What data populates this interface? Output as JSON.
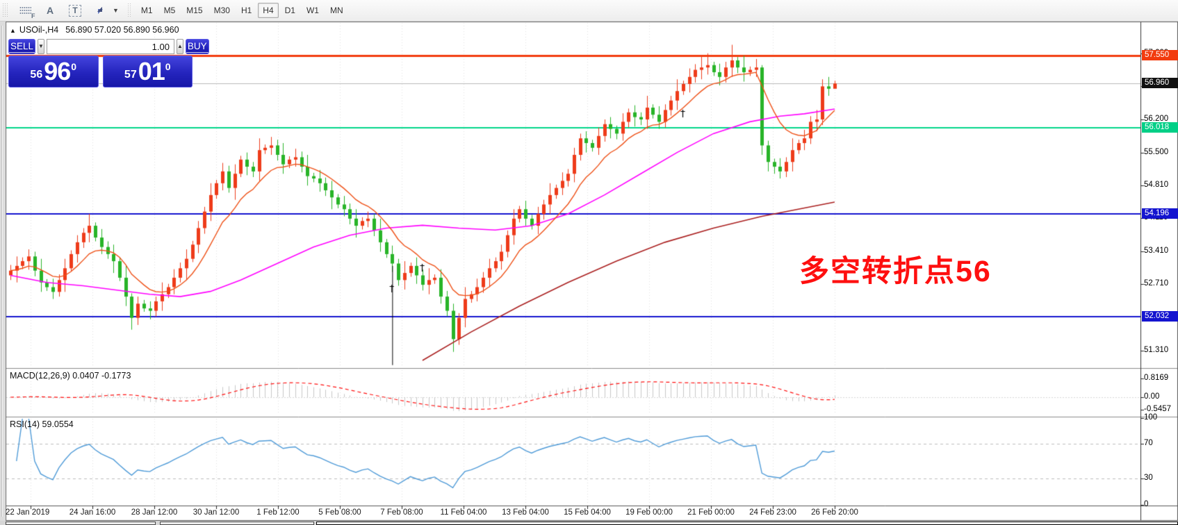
{
  "toolbar": {
    "icons": [
      {
        "name": "indicator-grid-f-icon",
        "glyph": "F"
      },
      {
        "name": "text-label-icon",
        "glyph": "A"
      },
      {
        "name": "text-box-icon",
        "glyph": "T"
      },
      {
        "name": "cycle-arrows-icon",
        "glyph": ""
      },
      {
        "name": "dropdown-caret-icon",
        "glyph": "▼"
      }
    ],
    "timeframes": [
      {
        "label": "M1",
        "active": false
      },
      {
        "label": "M5",
        "active": false
      },
      {
        "label": "M15",
        "active": false
      },
      {
        "label": "M30",
        "active": false
      },
      {
        "label": "H1",
        "active": false
      },
      {
        "label": "H4",
        "active": true
      },
      {
        "label": "D1",
        "active": false
      },
      {
        "label": "W1",
        "active": false
      },
      {
        "label": "MN",
        "active": false
      }
    ]
  },
  "chart": {
    "title_arrow": "▲",
    "symbol": "USOil-,H4",
    "ohlc": "56.890 57.020 56.890 56.960",
    "annotation": {
      "text": "多空转折点56",
      "color": "#fe0f0f"
    }
  },
  "trade_panel": {
    "sell_label": "SELL",
    "buy_label": "BUY",
    "volume": "1.00",
    "spinner_down": "▼",
    "spinner_up": "▲",
    "sell_price": {
      "small": "56",
      "big": "96",
      "sup": "0"
    },
    "buy_price": {
      "small": "57",
      "big": "01",
      "sup": "0"
    }
  },
  "price_axis": {
    "ticks": [
      {
        "label": "57.600",
        "value": 57.6
      },
      {
        "label": "56.900",
        "value": 56.9
      },
      {
        "label": "56.200",
        "value": 56.2
      },
      {
        "label": "55.500",
        "value": 55.5
      },
      {
        "label": "54.810",
        "value": 54.81
      },
      {
        "label": "54.110",
        "value": 54.11
      },
      {
        "label": "53.410",
        "value": 53.41
      },
      {
        "label": "52.710",
        "value": 52.71
      },
      {
        "label": "51.310",
        "value": 51.31
      }
    ],
    "badges": [
      {
        "label": "57.550",
        "value": 57.55,
        "color": "#f23b0e"
      },
      {
        "label": "56.960",
        "value": 56.96,
        "color": "#111111"
      },
      {
        "label": "56.018",
        "value": 56.018,
        "color": "#00cf86"
      },
      {
        "label": "54.196",
        "value": 54.196,
        "color": "#1414cf"
      },
      {
        "label": "52.032",
        "value": 52.032,
        "color": "#1414cf"
      }
    ]
  },
  "indicators": {
    "macd": {
      "label": "MACD(12,26,9) 0.0407 -0.1773",
      "axis": [
        {
          "label": "0.8169",
          "value": 0.8169
        },
        {
          "label": "0.00",
          "value": 0
        },
        {
          "label": "-0.5457",
          "value": -0.5457
        }
      ]
    },
    "rsi": {
      "label": "RSI(14) 59.0554",
      "axis": [
        {
          "label": "100",
          "value": 100
        },
        {
          "label": "70",
          "value": 70
        },
        {
          "label": "30",
          "value": 30
        },
        {
          "label": "0",
          "value": 0
        }
      ]
    }
  },
  "time_axis": [
    "22 Jan 2019",
    "24 Jan 16:00",
    "28 Jan 12:00",
    "30 Jan 12:00",
    "1 Feb 12:00",
    "5 Feb 08:00",
    "7 Feb 08:00",
    "11 Feb 04:00",
    "13 Feb 04:00",
    "15 Feb 04:00",
    "19 Feb 00:00",
    "21 Feb 00:00",
    "24 Feb 23:00",
    "26 Feb 20:00"
  ],
  "chart_data": {
    "type": "candlestick",
    "symbol": "USOil-",
    "timeframe": "H4",
    "up_color": "#ee3b1a",
    "down_color": "#28b428",
    "candles": [
      [
        52.9,
        53.12,
        52.8,
        53.0
      ],
      [
        53.0,
        53.3,
        52.75,
        53.1
      ],
      [
        53.1,
        53.28,
        53.03,
        53.2
      ],
      [
        53.2,
        53.45,
        53.02,
        53.3
      ],
      [
        53.3,
        53.4,
        52.88,
        53.0
      ],
      [
        53.0,
        53.25,
        52.55,
        52.75
      ],
      [
        52.75,
        52.82,
        52.57,
        52.65
      ],
      [
        52.65,
        52.83,
        52.4,
        52.55
      ],
      [
        52.55,
        52.92,
        52.45,
        52.8
      ],
      [
        52.8,
        53.25,
        52.55,
        53.05
      ],
      [
        53.05,
        53.43,
        52.98,
        53.35
      ],
      [
        53.35,
        53.75,
        53.17,
        53.6
      ],
      [
        53.6,
        53.9,
        53.48,
        53.8
      ],
      [
        53.8,
        54.2,
        53.6,
        53.95
      ],
      [
        53.95,
        54.02,
        53.62,
        53.7
      ],
      [
        53.7,
        53.88,
        53.35,
        53.5
      ],
      [
        53.5,
        53.62,
        53.25,
        53.35
      ],
      [
        53.35,
        53.55,
        52.95,
        53.2
      ],
      [
        53.2,
        53.28,
        52.78,
        52.85
      ],
      [
        52.85,
        53.1,
        52.25,
        52.45
      ],
      [
        52.45,
        52.52,
        51.75,
        52.0
      ],
      [
        52.0,
        52.45,
        51.85,
        52.3
      ],
      [
        52.3,
        52.38,
        52.13,
        52.2
      ],
      [
        52.2,
        52.35,
        51.97,
        52.15
      ],
      [
        52.15,
        52.45,
        52.03,
        52.35
      ],
      [
        52.35,
        52.75,
        52.15,
        52.5
      ],
      [
        52.5,
        52.72,
        52.42,
        52.65
      ],
      [
        52.65,
        53.03,
        52.5,
        52.85
      ],
      [
        52.85,
        53.17,
        52.75,
        53.05
      ],
      [
        53.05,
        53.45,
        52.8,
        53.25
      ],
      [
        53.25,
        53.63,
        53.18,
        53.55
      ],
      [
        53.55,
        54.05,
        53.37,
        53.9
      ],
      [
        53.9,
        54.35,
        53.78,
        54.25
      ],
      [
        54.25,
        54.85,
        54.05,
        54.6
      ],
      [
        54.6,
        54.92,
        54.52,
        54.85
      ],
      [
        54.85,
        55.28,
        54.7,
        55.1
      ],
      [
        55.1,
        55.22,
        54.65,
        54.75
      ],
      [
        54.75,
        55.25,
        54.5,
        55.05
      ],
      [
        55.05,
        55.43,
        54.98,
        55.35
      ],
      [
        55.35,
        55.5,
        55.02,
        55.2
      ],
      [
        55.2,
        55.3,
        54.98,
        55.1
      ],
      [
        55.1,
        55.8,
        54.9,
        55.55
      ],
      [
        55.55,
        55.67,
        55.47,
        55.6
      ],
      [
        55.6,
        55.83,
        55.45,
        55.65
      ],
      [
        55.65,
        55.77,
        55.33,
        55.45
      ],
      [
        55.45,
        55.7,
        55.05,
        55.25
      ],
      [
        55.25,
        55.42,
        55.17,
        55.35
      ],
      [
        55.35,
        55.58,
        55.2,
        55.4
      ],
      [
        55.4,
        55.52,
        55.08,
        55.2
      ],
      [
        55.2,
        55.45,
        54.8,
        55.0
      ],
      [
        55.0,
        55.07,
        54.87,
        54.95
      ],
      [
        54.95,
        55.13,
        54.67,
        54.85
      ],
      [
        54.85,
        54.97,
        54.58,
        54.7
      ],
      [
        54.7,
        54.9,
        54.3,
        54.55
      ],
      [
        54.55,
        54.62,
        54.32,
        54.4
      ],
      [
        54.4,
        54.58,
        54.15,
        54.3
      ],
      [
        54.3,
        54.42,
        53.98,
        54.1
      ],
      [
        54.1,
        54.3,
        53.7,
        53.95
      ],
      [
        53.95,
        54.13,
        53.87,
        54.05
      ],
      [
        54.05,
        54.25,
        53.92,
        54.1
      ],
      [
        54.1,
        54.2,
        53.73,
        53.85
      ],
      [
        53.85,
        54.1,
        53.4,
        53.6
      ],
      [
        53.6,
        53.67,
        53.27,
        53.35
      ],
      [
        53.35,
        53.53,
        52.97,
        53.15
      ],
      [
        53.15,
        53.25,
        52.68,
        52.8
      ],
      [
        52.8,
        53.2,
        52.6,
        52.95
      ],
      [
        52.95,
        53.17,
        52.87,
        53.1
      ],
      [
        53.1,
        53.28,
        52.72,
        52.9
      ],
      [
        52.9,
        53.02,
        52.58,
        52.7
      ],
      [
        52.7,
        53.05,
        52.5,
        52.8
      ],
      [
        52.8,
        52.92,
        52.72,
        52.85
      ],
      [
        52.85,
        53.03,
        52.3,
        52.45
      ],
      [
        52.45,
        52.57,
        52.03,
        52.15
      ],
      [
        52.15,
        52.3,
        51.28,
        51.55
      ],
      [
        51.55,
        52.1,
        51.43,
        52.0
      ],
      [
        52.0,
        52.65,
        51.8,
        52.4
      ],
      [
        52.4,
        52.57,
        52.32,
        52.5
      ],
      [
        52.5,
        52.83,
        52.35,
        52.65
      ],
      [
        52.65,
        52.97,
        52.53,
        52.85
      ],
      [
        52.85,
        53.25,
        52.65,
        53.05
      ],
      [
        53.05,
        53.28,
        52.97,
        53.2
      ],
      [
        53.2,
        53.55,
        53.02,
        53.4
      ],
      [
        53.4,
        53.85,
        53.28,
        53.75
      ],
      [
        53.75,
        54.3,
        53.55,
        54.1
      ],
      [
        54.1,
        54.37,
        54.02,
        54.3
      ],
      [
        54.3,
        54.48,
        53.95,
        54.1
      ],
      [
        54.1,
        54.18,
        53.87,
        53.95
      ],
      [
        53.95,
        54.35,
        53.77,
        54.2
      ],
      [
        54.2,
        54.5,
        54.08,
        54.4
      ],
      [
        54.4,
        54.85,
        54.2,
        54.6
      ],
      [
        54.6,
        54.82,
        54.52,
        54.75
      ],
      [
        54.75,
        55.08,
        54.6,
        54.9
      ],
      [
        54.9,
        55.15,
        54.78,
        55.05
      ],
      [
        55.05,
        55.6,
        54.87,
        55.45
      ],
      [
        55.45,
        55.9,
        55.33,
        55.8
      ],
      [
        55.8,
        55.95,
        55.5,
        55.7
      ],
      [
        55.7,
        55.77,
        55.52,
        55.6
      ],
      [
        55.6,
        56.03,
        55.45,
        55.85
      ],
      [
        55.85,
        56.2,
        55.73,
        56.1
      ],
      [
        56.1,
        56.25,
        55.8,
        56.0
      ],
      [
        56.0,
        56.07,
        55.78,
        55.9
      ],
      [
        55.9,
        56.33,
        55.75,
        56.15
      ],
      [
        56.15,
        56.43,
        56.03,
        56.35
      ],
      [
        56.35,
        56.5,
        56.05,
        56.25
      ],
      [
        56.25,
        56.35,
        56.08,
        56.2
      ],
      [
        56.2,
        56.7,
        56.0,
        56.45
      ],
      [
        56.45,
        56.52,
        56.22,
        56.3
      ],
      [
        56.3,
        56.48,
        56.0,
        56.15
      ],
      [
        56.15,
        56.52,
        56.03,
        56.4
      ],
      [
        56.4,
        56.7,
        56.28,
        56.6
      ],
      [
        56.6,
        57.05,
        56.4,
        56.8
      ],
      [
        56.8,
        57.02,
        56.72,
        56.95
      ],
      [
        56.95,
        57.28,
        56.77,
        57.1
      ],
      [
        57.1,
        57.37,
        56.98,
        57.25
      ],
      [
        57.25,
        57.55,
        57.05,
        57.3
      ],
      [
        57.3,
        57.6,
        57.15,
        57.35
      ],
      [
        57.35,
        57.42,
        57.12,
        57.2
      ],
      [
        57.2,
        57.38,
        56.92,
        57.1
      ],
      [
        57.1,
        57.42,
        56.98,
        57.3
      ],
      [
        57.3,
        57.78,
        57.1,
        57.45
      ],
      [
        57.45,
        57.52,
        57.18,
        57.3
      ],
      [
        57.3,
        57.55,
        57.0,
        57.2
      ],
      [
        57.2,
        57.32,
        57.12,
        57.25
      ],
      [
        57.25,
        57.48,
        57.1,
        57.3
      ],
      [
        57.3,
        57.35,
        55.45,
        55.65
      ],
      [
        55.65,
        55.75,
        55.1,
        55.3
      ],
      [
        55.3,
        55.37,
        55.05,
        55.2
      ],
      [
        55.2,
        55.38,
        54.95,
        55.1
      ],
      [
        55.1,
        55.4,
        54.98,
        55.3
      ],
      [
        55.3,
        55.8,
        55.1,
        55.55
      ],
      [
        55.55,
        55.77,
        55.47,
        55.7
      ],
      [
        55.7,
        55.98,
        55.55,
        55.8
      ],
      [
        55.8,
        56.27,
        55.68,
        56.15
      ],
      [
        56.15,
        56.4,
        55.95,
        56.2
      ],
      [
        56.2,
        57.05,
        56.08,
        56.9
      ],
      [
        56.9,
        57.1,
        56.7,
        56.85
      ],
      [
        56.85,
        57.02,
        56.89,
        56.96
      ]
    ],
    "hlines": [
      {
        "price": 56.96,
        "color": "#b9b9b9",
        "width": 1
      },
      {
        "price": 57.55,
        "color": "#f23b0e",
        "width": 3
      },
      {
        "price": 56.018,
        "color": "#00d68a",
        "width": 2
      },
      {
        "price": 54.196,
        "color": "#1414cf",
        "width": 2
      },
      {
        "price": 52.032,
        "color": "#1414cf",
        "width": 2
      }
    ],
    "ma_fast": {
      "type": "ema",
      "period": 10,
      "color": "#ef5016"
    },
    "ma_medium": {
      "color": "#ff00ff",
      "points": [
        [
          0,
          52.9
        ],
        [
          6,
          52.75
        ],
        [
          12,
          52.68
        ],
        [
          18,
          52.58
        ],
        [
          23,
          52.5
        ],
        [
          28,
          52.45
        ],
        [
          33,
          52.56
        ],
        [
          38,
          52.8
        ],
        [
          44,
          53.15
        ],
        [
          50,
          53.5
        ],
        [
          56,
          53.75
        ],
        [
          62,
          53.9
        ],
        [
          68,
          53.96
        ],
        [
          74,
          53.9
        ],
        [
          80,
          53.86
        ],
        [
          86,
          53.95
        ],
        [
          92,
          54.2
        ],
        [
          98,
          54.6
        ],
        [
          104,
          55.05
        ],
        [
          110,
          55.5
        ],
        [
          116,
          55.9
        ],
        [
          122,
          56.15
        ],
        [
          127,
          56.27
        ],
        [
          131,
          56.32
        ],
        [
          136,
          56.42
        ]
      ]
    },
    "ma_slow": {
      "color": "#aa1f1f",
      "points": [
        [
          68,
          51.1
        ],
        [
          76,
          51.7
        ],
        [
          84,
          52.25
        ],
        [
          92,
          52.75
        ],
        [
          100,
          53.2
        ],
        [
          108,
          53.6
        ],
        [
          116,
          53.9
        ],
        [
          124,
          54.15
        ],
        [
          130,
          54.3
        ],
        [
          136,
          54.45
        ]
      ]
    },
    "macd": {
      "params": [
        12,
        26,
        9
      ],
      "current_macd": 0.0407,
      "current_signal": -0.1773,
      "hist_color": "#c7c7c7",
      "signal_color": "#ff0f0f"
    },
    "rsi": {
      "period": 14,
      "current": 59.0554,
      "color": "#4f9bd8",
      "levels": [
        70,
        30
      ]
    },
    "marks": [
      {
        "bar": 63,
        "price": 52.63
      },
      {
        "bar": 68,
        "price": 53.07
      },
      {
        "bar": 111,
        "price": 56.33
      }
    ],
    "vline_mark": {
      "bar": 63,
      "from": 53.1,
      "to": 51.0
    }
  }
}
